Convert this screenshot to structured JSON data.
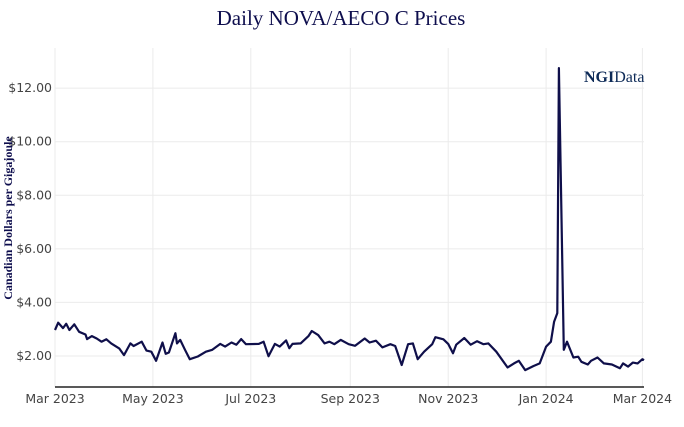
{
  "chart_data": {
    "type": "line",
    "title": "Daily NOVA/AECO C Prices",
    "xlabel": "",
    "ylabel": "Canadian Dollars per Gigajoule",
    "watermark": "NGIData",
    "xlim": [
      "2023-03-01",
      "2024-03-02"
    ],
    "ylim": [
      0.84,
      13.5
    ],
    "grid": true,
    "line_color": "#0f0f4a",
    "x_ticks": [
      {
        "date": "2023-03-01",
        "label": "Mar 2023"
      },
      {
        "date": "2023-05-01",
        "label": "May 2023"
      },
      {
        "date": "2023-07-01",
        "label": "Jul 2023"
      },
      {
        "date": "2023-09-01",
        "label": "Sep 2023"
      },
      {
        "date": "2023-11-01",
        "label": "Nov 2023"
      },
      {
        "date": "2024-01-01",
        "label": "Jan 2024"
      },
      {
        "date": "2024-03-01",
        "label": "Mar 2024"
      }
    ],
    "y_ticks": [
      {
        "value": 2,
        "label": "$2.00"
      },
      {
        "value": 4,
        "label": "$4.00"
      },
      {
        "value": 6,
        "label": "$6.00"
      },
      {
        "value": 8,
        "label": "$8.00"
      },
      {
        "value": 10,
        "label": "$10.00"
      },
      {
        "value": 12,
        "label": "$12.00"
      }
    ],
    "x": [
      "2023-03-01",
      "2023-03-03",
      "2023-03-06",
      "2023-03-08",
      "2023-03-10",
      "2023-03-13",
      "2023-03-16",
      "2023-03-20",
      "2023-03-21",
      "2023-03-24",
      "2023-03-27",
      "2023-03-30",
      "2023-04-02",
      "2023-04-05",
      "2023-04-10",
      "2023-04-13",
      "2023-04-17",
      "2023-04-19",
      "2023-04-24",
      "2023-04-27",
      "2023-04-30",
      "2023-05-03",
      "2023-05-07",
      "2023-05-09",
      "2023-05-11",
      "2023-05-15",
      "2023-05-16",
      "2023-05-18",
      "2023-05-21",
      "2023-05-24",
      "2023-05-29",
      "2023-06-03",
      "2023-06-07",
      "2023-06-12",
      "2023-06-15",
      "2023-06-19",
      "2023-06-22",
      "2023-06-25",
      "2023-06-28",
      "2023-07-06",
      "2023-07-09",
      "2023-07-12",
      "2023-07-16",
      "2023-07-19",
      "2023-07-23",
      "2023-07-25",
      "2023-07-27",
      "2023-08-01",
      "2023-08-06",
      "2023-08-08",
      "2023-08-12",
      "2023-08-16",
      "2023-08-19",
      "2023-08-22",
      "2023-08-26",
      "2023-08-31",
      "2023-09-04",
      "2023-09-10",
      "2023-09-13",
      "2023-09-17",
      "2023-09-21",
      "2023-09-26",
      "2023-09-29",
      "2023-10-03",
      "2023-10-07",
      "2023-10-10",
      "2023-10-13",
      "2023-10-17",
      "2023-10-22",
      "2023-10-24",
      "2023-10-29",
      "2023-11-01",
      "2023-11-04",
      "2023-11-06",
      "2023-11-11",
      "2023-11-15",
      "2023-11-19",
      "2023-11-23",
      "2023-11-26",
      "2023-12-01",
      "2023-12-08",
      "2023-12-12",
      "2023-12-15",
      "2023-12-19",
      "2023-12-24",
      "2023-12-28",
      "2024-01-01",
      "2024-01-04",
      "2024-01-06",
      "2024-01-08",
      "2024-01-09",
      "2024-01-12",
      "2024-01-14",
      "2024-01-18",
      "2024-01-21",
      "2024-01-23",
      "2024-01-27",
      "2024-01-29",
      "2024-02-02",
      "2024-02-06",
      "2024-02-11",
      "2024-02-16",
      "2024-02-18",
      "2024-02-21",
      "2024-02-24",
      "2024-02-27",
      "2024-03-01",
      "2024-03-02"
    ],
    "values": [
      2.97,
      3.24,
      3.04,
      3.2,
      2.97,
      3.18,
      2.9,
      2.8,
      2.63,
      2.74,
      2.65,
      2.53,
      2.62,
      2.47,
      2.28,
      2.03,
      2.47,
      2.37,
      2.53,
      2.2,
      2.16,
      1.82,
      2.5,
      2.08,
      2.13,
      2.85,
      2.47,
      2.6,
      2.23,
      1.88,
      1.98,
      2.16,
      2.23,
      2.45,
      2.35,
      2.5,
      2.42,
      2.63,
      2.44,
      2.45,
      2.53,
      1.99,
      2.45,
      2.35,
      2.58,
      2.29,
      2.45,
      2.47,
      2.75,
      2.93,
      2.78,
      2.47,
      2.53,
      2.44,
      2.6,
      2.44,
      2.38,
      2.65,
      2.5,
      2.57,
      2.32,
      2.44,
      2.37,
      1.66,
      2.44,
      2.47,
      1.88,
      2.16,
      2.44,
      2.7,
      2.62,
      2.45,
      2.1,
      2.42,
      2.67,
      2.42,
      2.55,
      2.44,
      2.47,
      2.16,
      1.57,
      1.72,
      1.82,
      1.47,
      1.62,
      1.72,
      2.35,
      2.53,
      3.28,
      3.6,
      12.75,
      2.23,
      2.53,
      1.94,
      1.97,
      1.78,
      1.68,
      1.82,
      1.94,
      1.72,
      1.68,
      1.54,
      1.72,
      1.6,
      1.75,
      1.72,
      1.88,
      1.84
    ]
  }
}
